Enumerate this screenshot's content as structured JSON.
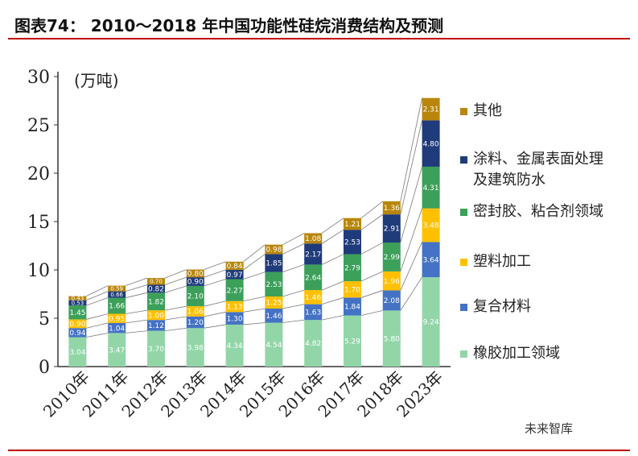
{
  "figure": {
    "title": "图表74： 2010～2018 年中国功能性硅烷消费结构及预测"
  },
  "watermark": "未来智库",
  "chart_data": {
    "type": "bar",
    "stacked": true,
    "unit_label": "(万吨)",
    "categories": [
      "2010年",
      "2011年",
      "2012年",
      "2013年",
      "2014年",
      "2015年",
      "2016年",
      "2017年",
      "2018年",
      "2023年"
    ],
    "ylim": [
      0,
      30
    ],
    "yticks": [
      0,
      5,
      10,
      15,
      20,
      25,
      30
    ],
    "grid": false,
    "legend_position": "right",
    "series": [
      {
        "name": "橡胶加工领域",
        "color": "#92d6a8",
        "values": [
          3.04,
          3.47,
          3.7,
          3.98,
          4.34,
          4.54,
          4.82,
          5.29,
          5.8,
          9.24
        ]
      },
      {
        "name": "复合材料",
        "color": "#4472c4",
        "values": [
          0.94,
          1.04,
          1.12,
          1.2,
          1.3,
          1.46,
          1.63,
          1.84,
          2.08,
          3.64
        ]
      },
      {
        "name": "塑料加工",
        "color": "#ffc000",
        "values": [
          0.9,
          0.95,
          1.0,
          1.06,
          1.13,
          1.25,
          1.46,
          1.7,
          1.96,
          3.48
        ]
      },
      {
        "name": "密封胶、粘合剂领域",
        "color": "#3ca05a",
        "values": [
          1.45,
          1.66,
          1.82,
          2.1,
          2.27,
          2.53,
          2.64,
          2.79,
          2.99,
          4.31
        ]
      },
      {
        "name": "涂料、金属表面处理及建筑防水",
        "color": "#1f3b7a",
        "values": [
          0.53,
          0.66,
          0.82,
          0.9,
          0.97,
          1.85,
          2.17,
          2.53,
          2.91,
          4.8
        ]
      },
      {
        "name": "其他",
        "color": "#b8860b",
        "values": [
          0.43,
          0.59,
          0.7,
          0.8,
          0.84,
          0.98,
          1.08,
          1.21,
          1.36,
          2.31
        ]
      }
    ],
    "data_labels": [
      [
        "3.04",
        "3.47",
        "3.70",
        "3.98",
        "4.34",
        "4.54",
        "4.82",
        "5.29",
        "5.80",
        "9.24"
      ],
      [
        "0.94",
        "1.04",
        "1.12",
        "1.20",
        "1.30",
        "1.46",
        "1.63",
        "1.84",
        "2.08",
        "3.64"
      ],
      [
        "0.90",
        "0.95",
        "1.00",
        "1.06",
        "1.13",
        "1.25",
        "1.46",
        "1.70",
        "1.96",
        "3.48"
      ],
      [
        "1.45",
        "1.66",
        "1.82",
        "2.10",
        "2.27",
        "2.53",
        "2.64",
        "2.79",
        "2.99",
        "4.31"
      ],
      [
        "0.53",
        "0.66",
        "0.82",
        "0.90",
        "0.97",
        "1.85",
        "2.17",
        "2.53",
        "2.91",
        "4.80"
      ],
      [
        "0.43",
        "0.59",
        "0.70",
        "0.80",
        "0.84",
        "0.98",
        "1.08",
        "1.21",
        "1.36",
        "2.31"
      ]
    ],
    "legend_lines": [
      [
        "其他"
      ],
      [
        "涂料、金属表面处理",
        "及建筑防水"
      ],
      [
        "密封胶、粘合剂领域"
      ],
      [
        "塑料加工"
      ],
      [
        "复合材料"
      ],
      [
        "橡胶加工领域"
      ]
    ]
  }
}
